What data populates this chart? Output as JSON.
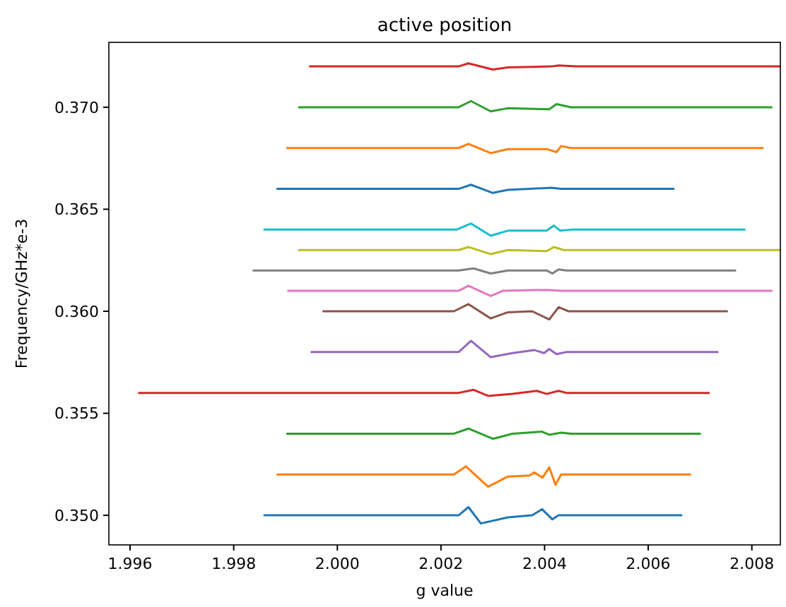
{
  "chart_data": {
    "type": "line",
    "title": "active position",
    "xlabel": "g value",
    "ylabel": "Frequency/GHz*e-3",
    "xlim": [
      1.99559,
      2.00855
    ],
    "ylim": [
      0.34855,
      0.37318
    ],
    "xticks": [
      {
        "value": 1.996,
        "label": "1.996"
      },
      {
        "value": 1.998,
        "label": "1.998"
      },
      {
        "value": 2.0,
        "label": "2.000"
      },
      {
        "value": 2.002,
        "label": "2.002"
      },
      {
        "value": 2.004,
        "label": "2.004"
      },
      {
        "value": 2.006,
        "label": "2.006"
      },
      {
        "value": 2.008,
        "label": "2.008"
      }
    ],
    "yticks": [
      {
        "value": 0.35,
        "label": "0.350"
      },
      {
        "value": 0.355,
        "label": "0.355"
      },
      {
        "value": 0.36,
        "label": "0.360"
      },
      {
        "value": 0.365,
        "label": "0.365"
      },
      {
        "value": 0.37,
        "label": "0.370"
      }
    ],
    "grid": false,
    "marker": "none",
    "line_style": "solid",
    "series": [
      {
        "color": "#1f77b4",
        "x": [
          1.99859,
          2.00234,
          2.00253,
          2.00277,
          2.00329,
          2.00376,
          2.00395,
          2.00415,
          2.00427,
          2.00664
        ],
        "values": [
          0.35,
          0.35,
          0.3504,
          0.3496,
          0.3499,
          0.35,
          0.3503,
          0.3498,
          0.35,
          0.35
        ]
      },
      {
        "color": "#ff7f0e",
        "x": [
          1.99884,
          2.00225,
          2.00248,
          2.00291,
          2.00329,
          2.00371,
          2.0038,
          2.00396,
          2.00409,
          2.00421,
          2.00432,
          2.00681
        ],
        "values": [
          0.352,
          0.352,
          0.3524,
          0.3514,
          0.3519,
          0.35195,
          0.3521,
          0.35185,
          0.35235,
          0.3515,
          0.352,
          0.352
        ]
      },
      {
        "color": "#2ca02c",
        "x": [
          1.99903,
          2.00225,
          2.00253,
          2.003,
          2.00338,
          2.00395,
          2.00409,
          2.00432,
          2.00451,
          2.007
        ],
        "values": [
          0.354,
          0.354,
          0.35425,
          0.35375,
          0.354,
          0.3541,
          0.35395,
          0.35405,
          0.354,
          0.354
        ]
      },
      {
        "color": "#d62728",
        "x": [
          1.99617,
          2.00234,
          2.00263,
          2.00291,
          2.00338,
          2.00385,
          2.00404,
          2.00427,
          2.00442,
          2.00717
        ],
        "values": [
          0.356,
          0.356,
          0.35615,
          0.35585,
          0.35595,
          0.3561,
          0.35595,
          0.3561,
          0.356,
          0.356
        ]
      },
      {
        "color": "#9467bd",
        "x": [
          1.9995,
          2.00234,
          2.00258,
          2.00296,
          2.00338,
          2.0038,
          2.00399,
          2.00409,
          2.00423,
          2.00442,
          2.00734
        ],
        "values": [
          0.358,
          0.358,
          0.35855,
          0.35775,
          0.35795,
          0.3581,
          0.35795,
          0.35815,
          0.3579,
          0.358,
          0.358
        ]
      },
      {
        "color": "#8c564b",
        "x": [
          1.99973,
          2.00225,
          2.00253,
          2.00296,
          2.00329,
          2.00376,
          2.00409,
          2.00427,
          2.00446,
          2.00752
        ],
        "values": [
          0.36,
          0.36,
          0.36035,
          0.35965,
          0.35995,
          0.36,
          0.3596,
          0.3602,
          0.36,
          0.36
        ]
      },
      {
        "color": "#e377c2",
        "x": [
          1.99905,
          2.00234,
          2.00253,
          2.00296,
          2.00319,
          2.00404,
          2.00432,
          2.00838
        ],
        "values": [
          0.361,
          0.361,
          0.36125,
          0.36075,
          0.361,
          0.36105,
          0.361,
          0.361
        ]
      },
      {
        "color": "#7f7f7f",
        "x": [
          1.99838,
          2.00234,
          2.00263,
          2.00296,
          2.00329,
          2.00404,
          2.00415,
          2.00427,
          2.00442,
          2.00768
        ],
        "values": [
          0.362,
          0.362,
          0.3621,
          0.36185,
          0.362,
          0.362,
          0.36185,
          0.36205,
          0.362,
          0.362
        ]
      },
      {
        "color": "#bcbd22",
        "x": [
          1.99926,
          2.00234,
          2.00253,
          2.00296,
          2.00329,
          2.00404,
          2.00418,
          2.00437,
          2.00854
        ],
        "values": [
          0.363,
          0.363,
          0.36315,
          0.3628,
          0.363,
          0.36295,
          0.36315,
          0.363,
          0.363
        ]
      },
      {
        "color": "#17becf",
        "x": [
          1.99859,
          2.0023,
          2.00258,
          2.00296,
          2.00329,
          2.00404,
          2.00418,
          2.0043,
          2.00451,
          2.00786
        ],
        "values": [
          0.364,
          0.364,
          0.3643,
          0.3637,
          0.36395,
          0.36395,
          0.3642,
          0.36395,
          0.364,
          0.364
        ]
      },
      {
        "color": "#1f77b4",
        "x": [
          1.99884,
          2.00234,
          2.00258,
          2.003,
          2.00329,
          2.00413,
          2.00432,
          2.00649
        ],
        "values": [
          0.366,
          0.366,
          0.3662,
          0.3658,
          0.36595,
          0.36605,
          0.366,
          0.366
        ]
      },
      {
        "color": "#ff7f0e",
        "x": [
          1.99903,
          2.00234,
          2.00253,
          2.00296,
          2.00329,
          2.00404,
          2.00423,
          2.00432,
          2.00451,
          2.00821
        ],
        "values": [
          0.368,
          0.368,
          0.3682,
          0.36775,
          0.36795,
          0.36795,
          0.3678,
          0.3681,
          0.368,
          0.368
        ]
      },
      {
        "color": "#2ca02c",
        "x": [
          1.99926,
          2.00234,
          2.00258,
          2.00296,
          2.00329,
          2.00409,
          2.00423,
          2.00451,
          2.00838
        ],
        "values": [
          0.37,
          0.37,
          0.3703,
          0.3698,
          0.36995,
          0.3699,
          0.37015,
          0.37,
          0.37
        ]
      },
      {
        "color": "#d62728",
        "x": [
          1.99947,
          2.00234,
          2.00253,
          2.003,
          2.00329,
          2.00413,
          2.00427,
          2.00461,
          2.00854
        ],
        "values": [
          0.372,
          0.372,
          0.37215,
          0.37185,
          0.37195,
          0.372,
          0.37205,
          0.372,
          0.372
        ]
      }
    ]
  }
}
